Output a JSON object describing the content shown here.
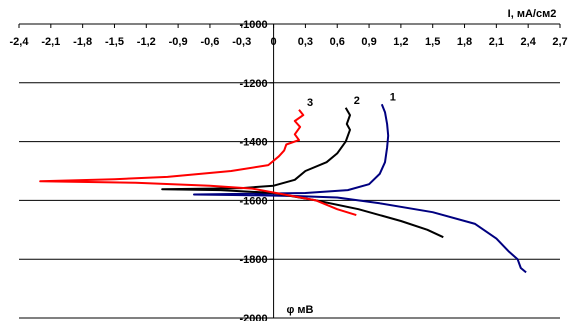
{
  "chart_data": {
    "type": "line",
    "title": "",
    "xlabel": "I, мА/см2",
    "ylabel": "φ мВ",
    "xlim": [
      -2.4,
      2.7
    ],
    "ylim": [
      -2000,
      -1000
    ],
    "x_ticks": [
      "-2,4",
      "-2,1",
      "-1,8",
      "-1,5",
      "-1,2",
      "-0,9",
      "-0,6",
      "-0,3",
      "0",
      "0,3",
      "0,6",
      "0,9",
      "1,2",
      "1,5",
      "1,8",
      "2,1",
      "2,4",
      "2,7"
    ],
    "x_tick_values": [
      -2.4,
      -2.1,
      -1.8,
      -1.5,
      -1.2,
      -0.9,
      -0.6,
      -0.3,
      0,
      0.3,
      0.6,
      0.9,
      1.2,
      1.5,
      1.8,
      2.1,
      2.4,
      2.7
    ],
    "y_ticks": [
      "-1000",
      "-1200",
      "-1400",
      "-1600",
      "-1800",
      "-2000"
    ],
    "y_tick_values": [
      -1000,
      -1200,
      -1400,
      -1600,
      -1800,
      -2000
    ],
    "grid": "horizontal",
    "series": [
      {
        "name": "1",
        "color": "#000080",
        "points": [
          [
            1.02,
            -1273
          ],
          [
            1.05,
            -1300
          ],
          [
            1.07,
            -1340
          ],
          [
            1.08,
            -1380
          ],
          [
            1.07,
            -1420
          ],
          [
            1.05,
            -1470
          ],
          [
            1.0,
            -1510
          ],
          [
            0.9,
            -1545
          ],
          [
            0.7,
            -1565
          ],
          [
            0.3,
            -1575
          ],
          [
            -0.3,
            -1578
          ],
          [
            -0.75,
            -1580
          ],
          [
            -0.3,
            -1582
          ],
          [
            0.2,
            -1585
          ],
          [
            0.6,
            -1590
          ],
          [
            1.0,
            -1610
          ],
          [
            1.5,
            -1640
          ],
          [
            1.9,
            -1680
          ],
          [
            2.1,
            -1730
          ],
          [
            2.22,
            -1775
          ],
          [
            2.3,
            -1800
          ],
          [
            2.33,
            -1830
          ],
          [
            2.38,
            -1845
          ]
        ]
      },
      {
        "name": "2",
        "color": "#000000",
        "points": [
          [
            0.68,
            -1285
          ],
          [
            0.72,
            -1310
          ],
          [
            0.69,
            -1340
          ],
          [
            0.72,
            -1360
          ],
          [
            0.68,
            -1400
          ],
          [
            0.6,
            -1440
          ],
          [
            0.5,
            -1470
          ],
          [
            0.3,
            -1500
          ],
          [
            0.2,
            -1530
          ],
          [
            0.0,
            -1550
          ],
          [
            -0.3,
            -1558
          ],
          [
            -0.6,
            -1560
          ],
          [
            -1.05,
            -1562
          ],
          [
            -0.5,
            -1565
          ],
          [
            0.0,
            -1575
          ],
          [
            0.4,
            -1600
          ],
          [
            0.8,
            -1630
          ],
          [
            1.2,
            -1670
          ],
          [
            1.45,
            -1700
          ],
          [
            1.6,
            -1725
          ]
        ]
      },
      {
        "name": "3",
        "color": "#ff0000",
        "points": [
          [
            0.24,
            -1292
          ],
          [
            0.28,
            -1310
          ],
          [
            0.2,
            -1330
          ],
          [
            0.25,
            -1350
          ],
          [
            0.2,
            -1375
          ],
          [
            0.24,
            -1395
          ],
          [
            0.12,
            -1410
          ],
          [
            0.1,
            -1430
          ],
          [
            0.05,
            -1450
          ],
          [
            -0.05,
            -1480
          ],
          [
            -0.4,
            -1500
          ],
          [
            -1.0,
            -1520
          ],
          [
            -1.5,
            -1528
          ],
          [
            -2.2,
            -1535
          ],
          [
            -1.3,
            -1540
          ],
          [
            -0.6,
            -1550
          ],
          [
            -0.2,
            -1560
          ],
          [
            0.1,
            -1580
          ],
          [
            0.4,
            -1600
          ],
          [
            0.6,
            -1630
          ],
          [
            0.78,
            -1650
          ]
        ]
      }
    ]
  }
}
